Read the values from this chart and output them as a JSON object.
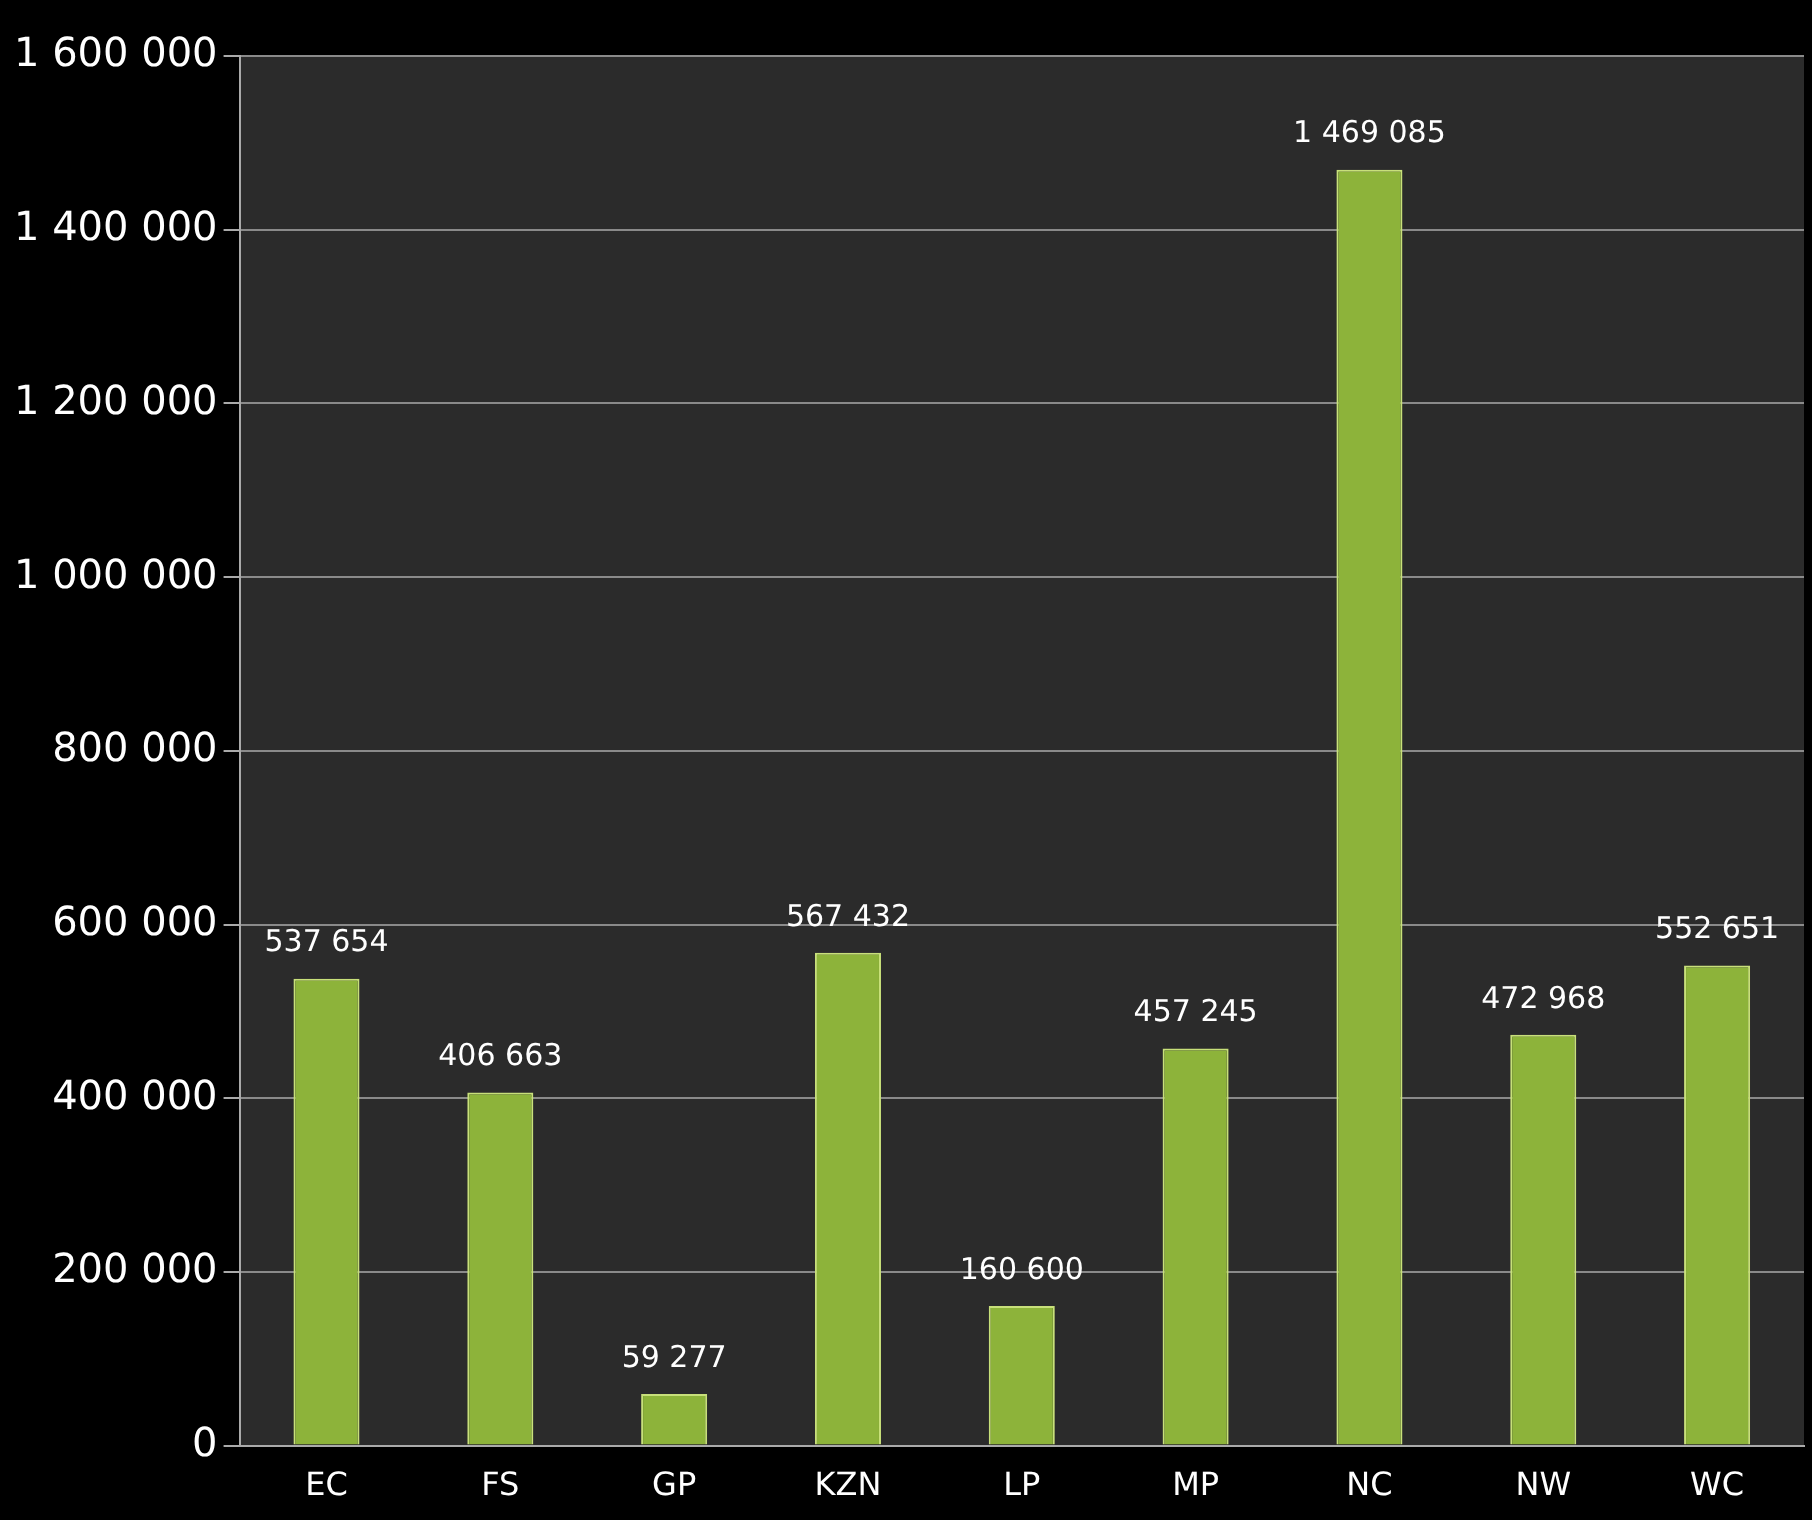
{
  "chart_data": {
    "type": "bar",
    "categories": [
      "EC",
      "FS",
      "GP",
      "KZN",
      "LP",
      "MP",
      "NC",
      "NW",
      "WC"
    ],
    "values": [
      537654,
      406663,
      59277,
      567432,
      160600,
      457245,
      1469085,
      472968,
      552651
    ],
    "value_labels": [
      "537 654",
      "406 663",
      "59 277",
      "567 432",
      "160 600",
      "457 245",
      "1 469 085",
      "472 968",
      "552 651"
    ],
    "color": "#8db33a",
    "ylim": [
      0,
      1600000
    ],
    "yticks": [
      {
        "value": 0,
        "label": "0"
      },
      {
        "value": 200000,
        "label": "200 000"
      },
      {
        "value": 400000,
        "label": "400 000"
      },
      {
        "value": 600000,
        "label": "600 000"
      },
      {
        "value": 800000,
        "label": "800 000"
      },
      {
        "value": 1000000,
        "label": "1 000 000"
      },
      {
        "value": 1200000,
        "label": "1 200 000"
      },
      {
        "value": 1400000,
        "label": "1 400 000"
      },
      {
        "value": 1600000,
        "label": "1 600 000"
      }
    ],
    "grid": "y"
  }
}
